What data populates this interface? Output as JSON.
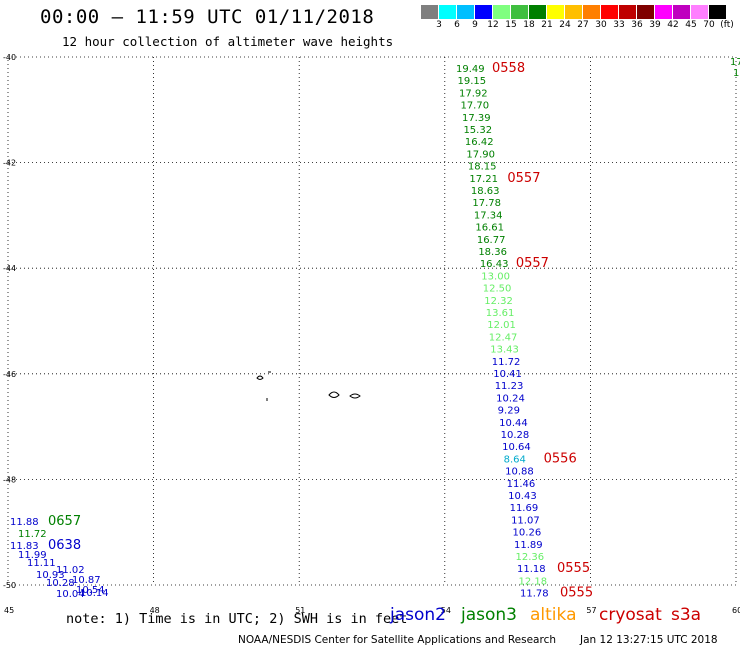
{
  "header": {
    "title": "00:00 – 11:59 UTC 01/11/2018",
    "subtitle": "12 hour collection of altimeter wave heights"
  },
  "scale": {
    "unit": "(ft)",
    "colors": [
      "#7f7f7f",
      "#00ffff",
      "#00bfff",
      "#0000ff",
      "#7fff7f",
      "#3fbf3f",
      "#007f00",
      "#ffff00",
      "#ffbf00",
      "#ff7f00",
      "#ff0000",
      "#bf0000",
      "#7f0000",
      "#ff00ff",
      "#bf00bf",
      "#ff7fff",
      "#000000"
    ],
    "labels": [
      "3",
      "6",
      "9",
      "12",
      "15",
      "18",
      "21",
      "24",
      "27",
      "30",
      "33",
      "36",
      "39",
      "42",
      "45",
      "70"
    ]
  },
  "axes": {
    "lat_labels": [
      "-40",
      "-42",
      "-44",
      "-46",
      "-48",
      "-50"
    ],
    "lon_labels": [
      "45",
      "48",
      "51",
      "54",
      "57",
      "60"
    ]
  },
  "colors": {
    "jason2": "#0000cc",
    "jason3": "#008000",
    "altika": "#ff9900",
    "cryosat": "#cc0000",
    "light_green": "#66ee66",
    "cyan": "#00aacc"
  },
  "track_main": {
    "values": [
      {
        "v": "19.49",
        "c": "jason3"
      },
      {
        "v": "19.15",
        "c": "jason3"
      },
      {
        "v": "17.92",
        "c": "jason3"
      },
      {
        "v": "17.70",
        "c": "jason3"
      },
      {
        "v": "17.39",
        "c": "jason3"
      },
      {
        "v": "15.32",
        "c": "jason3"
      },
      {
        "v": "16.42",
        "c": "jason3"
      },
      {
        "v": "17.90",
        "c": "jason3"
      },
      {
        "v": "18.15",
        "c": "jason3"
      },
      {
        "v": "17.21",
        "c": "jason3"
      },
      {
        "v": "18.63",
        "c": "jason3"
      },
      {
        "v": "17.78",
        "c": "jason3"
      },
      {
        "v": "17.34",
        "c": "jason3"
      },
      {
        "v": "16.61",
        "c": "jason3"
      },
      {
        "v": "16.77",
        "c": "jason3"
      },
      {
        "v": "18.36",
        "c": "jason3"
      },
      {
        "v": "16.43",
        "c": "jason3"
      },
      {
        "v": "13.00",
        "c": "light_green"
      },
      {
        "v": "12.50",
        "c": "light_green"
      },
      {
        "v": "12.32",
        "c": "light_green"
      },
      {
        "v": "13.61",
        "c": "light_green"
      },
      {
        "v": "12.01",
        "c": "light_green"
      },
      {
        "v": "12.47",
        "c": "light_green"
      },
      {
        "v": "13.43",
        "c": "light_green"
      },
      {
        "v": "11.72",
        "c": "jason2"
      },
      {
        "v": "10.41",
        "c": "jason2"
      },
      {
        "v": "11.23",
        "c": "jason2"
      },
      {
        "v": "10.24",
        "c": "jason2"
      },
      {
        "v": "9.29",
        "c": "jason2"
      },
      {
        "v": "10.44",
        "c": "jason2"
      },
      {
        "v": "10.28",
        "c": "jason2"
      },
      {
        "v": "10.64",
        "c": "jason2"
      },
      {
        "v": "8.64",
        "c": "cyan"
      },
      {
        "v": "10.88",
        "c": "jason2"
      },
      {
        "v": "11.46",
        "c": "jason2"
      },
      {
        "v": "10.43",
        "c": "jason2"
      },
      {
        "v": "11.69",
        "c": "jason2"
      },
      {
        "v": "11.07",
        "c": "jason2"
      },
      {
        "v": "10.26",
        "c": "jason2"
      },
      {
        "v": "11.89",
        "c": "jason2"
      },
      {
        "v": "12.36",
        "c": "light_green"
      },
      {
        "v": "11.18",
        "c": "jason2"
      },
      {
        "v": "12.18",
        "c": "light_green"
      },
      {
        "v": "11.78",
        "c": "jason2"
      }
    ],
    "time_labels": [
      "0558",
      "0557",
      "0557",
      "0556",
      "0555",
      "0555"
    ]
  },
  "track_sw": {
    "values": [
      {
        "v": "11.88",
        "c": "jason2"
      },
      {
        "v": "11.72",
        "c": "jason3"
      },
      {
        "v": "11.83",
        "c": "jason2"
      },
      {
        "v": "11.99",
        "c": "jason2"
      },
      {
        "v": "11.11",
        "c": "jason2"
      },
      {
        "v": "10.93",
        "c": "jason2"
      },
      {
        "v": "10.28",
        "c": "jason2"
      },
      {
        "v": "10.04",
        "c": "jason2"
      },
      {
        "v": "11.02",
        "c": "jason2"
      },
      {
        "v": "10.87",
        "c": "jason2"
      },
      {
        "v": "10.54",
        "c": "jason2"
      },
      {
        "v": "10.14",
        "c": "jason2"
      }
    ],
    "time_labels": [
      "0657",
      "0638"
    ]
  },
  "track_east": {
    "values": [
      "17",
      "1"
    ]
  },
  "footer": {
    "note": "note: 1) Time is in UTC; 2) SWH is in feet",
    "satellites": [
      "jason2",
      "jason3",
      "altika",
      "cryosat",
      "s3a"
    ],
    "credit": "NOAA/NESDIS Center for Satellite Applications and Research",
    "timestamp": "Jan 12 13:27:15 UTC 2018"
  }
}
